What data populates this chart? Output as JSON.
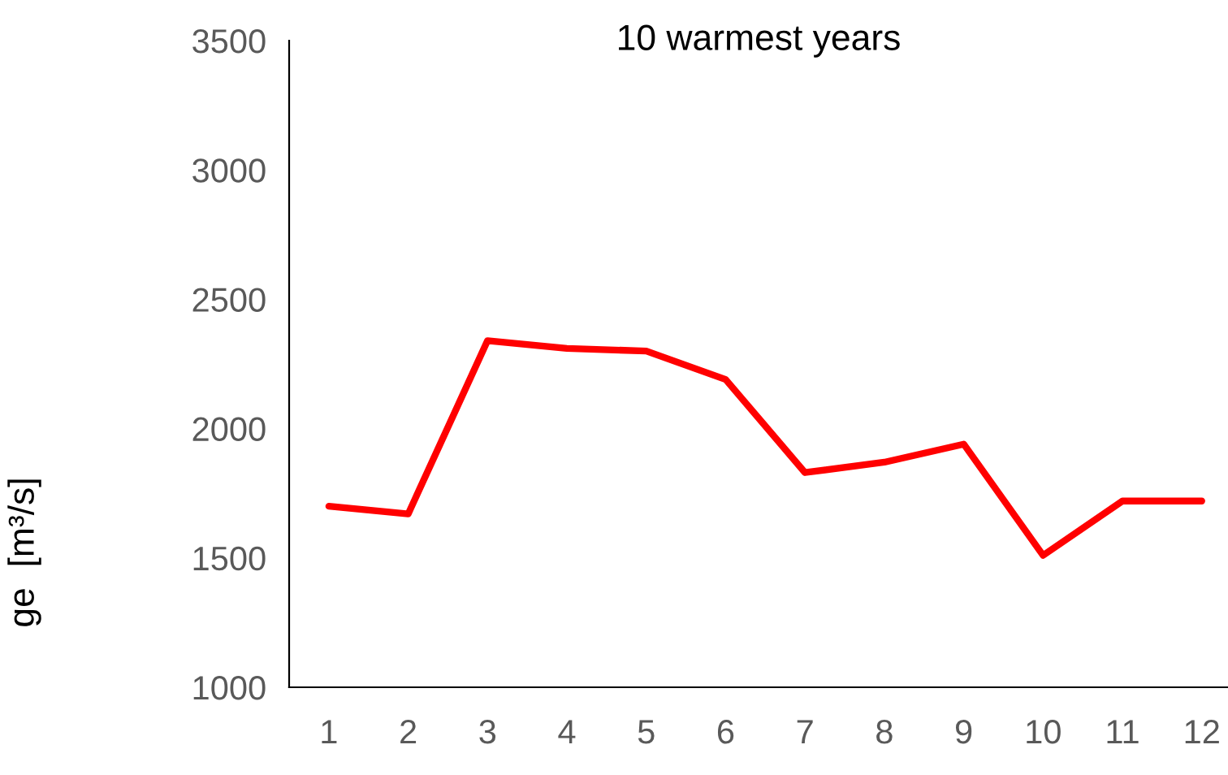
{
  "chart_data": {
    "type": "line",
    "title": "10 warmest years",
    "ylabel": "ge  [m³/s]",
    "categories": [
      "1",
      "2",
      "3",
      "4",
      "5",
      "6",
      "7",
      "8",
      "9",
      "10",
      "11",
      "12"
    ],
    "series": [
      {
        "color": "#ff0000",
        "values": [
          1700,
          1670,
          2340,
          2310,
          2300,
          2190,
          1830,
          1870,
          1940,
          1510,
          1720,
          1720
        ]
      }
    ],
    "ylim": [
      1000,
      3500
    ],
    "yticks": [
      1000,
      1500,
      2000,
      2500,
      3000,
      3500
    ],
    "grid": false,
    "legend": false,
    "marker": "none",
    "line_style": "solid"
  }
}
